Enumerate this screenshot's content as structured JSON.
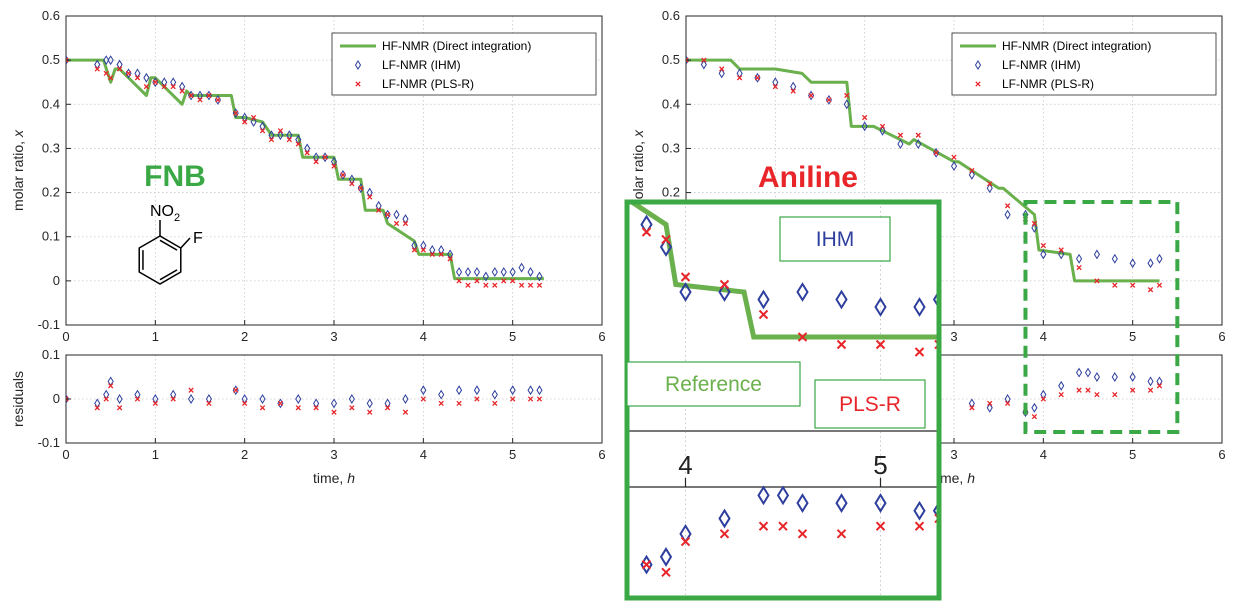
{
  "chart_data": [
    {
      "type": "scatter",
      "panel": "FNB",
      "xlabel": "time, h",
      "ylabel_top": "molar ratio, x",
      "ylabel_bottom": "residuals",
      "xlim": [
        0,
        6
      ],
      "ylim_top": [
        -0.1,
        0.6
      ],
      "ylim_bottom": [
        -0.1,
        0.1
      ],
      "xticks": [
        "0",
        "1",
        "2",
        "3",
        "4",
        "5",
        "6"
      ],
      "yticks_top": [
        "-0.1",
        "0",
        "0.1",
        "0.2",
        "0.3",
        "0.4",
        "0.5",
        "0.6"
      ],
      "yticks_bottom": [
        "-0.1",
        "0",
        "0.1"
      ],
      "grid": true,
      "legend_position": "top-right",
      "legend": [
        "HF-NMR (Direct integration)",
        "LF-NMR (IHM)",
        "LF-NMR (PLS-R)"
      ],
      "annotation": "FNB",
      "structure_label": {
        "main": "NO",
        "sub": "2",
        "sub2": "F"
      },
      "series": [
        {
          "name": "HF-NMR (Direct integration)",
          "style": "line",
          "color": "#6ab04c",
          "x": [
            0.0,
            0.42,
            0.5,
            0.55,
            0.6,
            0.9,
            0.95,
            1.0,
            1.3,
            1.35,
            1.4,
            1.85,
            1.9,
            2.0,
            2.2,
            2.3,
            2.6,
            2.65,
            3.0,
            3.05,
            3.3,
            3.35,
            3.55,
            3.6,
            3.9,
            3.95,
            4.3,
            4.35,
            5.35
          ],
          "y": [
            0.5,
            0.5,
            0.45,
            0.48,
            0.48,
            0.42,
            0.46,
            0.46,
            0.4,
            0.43,
            0.42,
            0.42,
            0.37,
            0.37,
            0.36,
            0.33,
            0.33,
            0.28,
            0.28,
            0.23,
            0.23,
            0.16,
            0.16,
            0.13,
            0.09,
            0.06,
            0.06,
            0.005,
            0.005
          ]
        },
        {
          "name": "LF-NMR (IHM)",
          "style": "markers",
          "marker": "diamond",
          "color": "#2e3f9e",
          "x": [
            0.0,
            0.35,
            0.45,
            0.5,
            0.6,
            0.7,
            0.8,
            0.9,
            1.0,
            1.1,
            1.2,
            1.3,
            1.4,
            1.5,
            1.6,
            1.7,
            1.9,
            2.0,
            2.1,
            2.2,
            2.3,
            2.4,
            2.5,
            2.6,
            2.7,
            2.8,
            2.9,
            3.0,
            3.1,
            3.2,
            3.3,
            3.4,
            3.5,
            3.6,
            3.7,
            3.8,
            3.9,
            4.0,
            4.1,
            4.2,
            4.3,
            4.4,
            4.5,
            4.6,
            4.7,
            4.8,
            4.9,
            5.0,
            5.1,
            5.2,
            5.3
          ],
          "y": [
            0.5,
            0.49,
            0.5,
            0.5,
            0.49,
            0.47,
            0.47,
            0.46,
            0.45,
            0.45,
            0.45,
            0.44,
            0.42,
            0.42,
            0.42,
            0.41,
            0.38,
            0.37,
            0.36,
            0.35,
            0.33,
            0.33,
            0.33,
            0.32,
            0.3,
            0.28,
            0.28,
            0.27,
            0.24,
            0.23,
            0.21,
            0.2,
            0.17,
            0.15,
            0.15,
            0.14,
            0.08,
            0.08,
            0.07,
            0.07,
            0.06,
            0.02,
            0.02,
            0.02,
            0.01,
            0.02,
            0.02,
            0.02,
            0.03,
            0.02,
            0.01
          ]
        },
        {
          "name": "LF-NMR (PLS-R)",
          "style": "markers",
          "marker": "x",
          "color": "#e8262a",
          "x": [
            0.0,
            0.35,
            0.45,
            0.5,
            0.6,
            0.7,
            0.8,
            0.9,
            1.0,
            1.1,
            1.2,
            1.3,
            1.4,
            1.5,
            1.6,
            1.7,
            1.9,
            2.0,
            2.1,
            2.2,
            2.3,
            2.4,
            2.5,
            2.6,
            2.7,
            2.8,
            2.9,
            3.0,
            3.1,
            3.2,
            3.3,
            3.4,
            3.5,
            3.6,
            3.7,
            3.8,
            3.9,
            4.0,
            4.1,
            4.2,
            4.3,
            4.4,
            4.5,
            4.6,
            4.7,
            4.8,
            4.9,
            5.0,
            5.1,
            5.2,
            5.3
          ],
          "y": [
            0.5,
            0.48,
            0.47,
            0.46,
            0.48,
            0.47,
            0.46,
            0.44,
            0.45,
            0.44,
            0.44,
            0.43,
            0.42,
            0.41,
            0.42,
            0.41,
            0.38,
            0.36,
            0.37,
            0.34,
            0.32,
            0.34,
            0.32,
            0.31,
            0.29,
            0.27,
            0.28,
            0.26,
            0.24,
            0.22,
            0.21,
            0.19,
            0.16,
            0.15,
            0.13,
            0.13,
            0.07,
            0.07,
            0.06,
            0.06,
            0.05,
            0.0,
            -0.01,
            0.0,
            -0.01,
            -0.01,
            0.0,
            0.0,
            -0.01,
            -0.01,
            -0.01
          ]
        },
        {
          "name": "residuals-IHM",
          "style": "markers",
          "marker": "diamond",
          "color": "#2e3f9e",
          "x": [
            0.0,
            0.35,
            0.45,
            0.5,
            0.6,
            0.8,
            1.0,
            1.2,
            1.4,
            1.6,
            1.9,
            2.0,
            2.2,
            2.4,
            2.6,
            2.8,
            3.0,
            3.2,
            3.4,
            3.6,
            3.8,
            4.0,
            4.2,
            4.4,
            4.6,
            4.8,
            5.0,
            5.2,
            5.3
          ],
          "y": [
            0.0,
            -0.01,
            0.01,
            0.04,
            0.0,
            0.01,
            0.0,
            0.01,
            0.0,
            0.0,
            0.02,
            0.0,
            0.0,
            -0.01,
            0.0,
            -0.01,
            -0.01,
            0.0,
            -0.01,
            -0.01,
            0.0,
            0.02,
            0.01,
            0.02,
            0.02,
            0.01,
            0.02,
            0.02,
            0.02
          ]
        },
        {
          "name": "residuals-PLS-R",
          "style": "markers",
          "marker": "x",
          "color": "#e8262a",
          "x": [
            0.0,
            0.35,
            0.45,
            0.5,
            0.6,
            0.8,
            1.0,
            1.2,
            1.4,
            1.6,
            1.9,
            2.0,
            2.2,
            2.4,
            2.6,
            2.8,
            3.0,
            3.2,
            3.4,
            3.6,
            3.8,
            4.0,
            4.2,
            4.4,
            4.6,
            4.8,
            5.0,
            5.2,
            5.3
          ],
          "y": [
            0.0,
            -0.02,
            0.0,
            0.03,
            -0.02,
            0.0,
            -0.01,
            0.0,
            0.02,
            -0.01,
            0.02,
            -0.01,
            -0.02,
            -0.01,
            -0.02,
            -0.02,
            -0.03,
            -0.02,
            -0.03,
            -0.02,
            -0.03,
            0.0,
            -0.01,
            -0.01,
            0.0,
            -0.01,
            0.0,
            0.0,
            0.0
          ]
        }
      ]
    },
    {
      "type": "scatter",
      "panel": "Aniline",
      "xlabel": "time, h",
      "ylabel_top": "molar ratio, x",
      "xlim": [
        0,
        6
      ],
      "ylim_top": [
        -0.1,
        0.6
      ],
      "ylim_bottom": [
        -0.1,
        0.1
      ],
      "xticks": [
        "0",
        "1",
        "2",
        "3",
        "4",
        "5",
        "6"
      ],
      "yticks_top": [
        "-0.1",
        "0",
        "0.1",
        "0.2",
        "0.3",
        "0.4",
        "0.5",
        "0.6"
      ],
      "grid": true,
      "legend_position": "top-right",
      "legend": [
        "HF-NMR (Direct integration)",
        "LF-NMR (IHM)",
        "LF-NMR (PLS-R)"
      ],
      "annotation": "Aniline",
      "inset": {
        "xlim": [
          3.7,
          5.3
        ],
        "xticks": [
          "4",
          "5"
        ],
        "labels": {
          "ihm": "IHM",
          "reference": "Reference",
          "plsr": "PLS-R"
        }
      },
      "series": [
        {
          "name": "HF-NMR (Direct integration)",
          "style": "line",
          "color": "#6ab04c",
          "x": [
            0.0,
            0.5,
            0.6,
            1.0,
            1.3,
            1.4,
            1.8,
            1.85,
            2.1,
            2.5,
            2.55,
            3.0,
            3.05,
            3.5,
            3.55,
            3.9,
            3.95,
            4.3,
            4.35,
            5.3
          ],
          "y": [
            0.5,
            0.5,
            0.48,
            0.48,
            0.47,
            0.45,
            0.45,
            0.35,
            0.35,
            0.31,
            0.32,
            0.27,
            0.27,
            0.21,
            0.21,
            0.15,
            0.07,
            0.06,
            0.0,
            0.0
          ]
        },
        {
          "name": "LF-NMR (IHM)",
          "style": "markers",
          "marker": "diamond",
          "color": "#2e3f9e",
          "x": [
            0.0,
            0.2,
            0.4,
            0.6,
            0.8,
            1.0,
            1.2,
            1.4,
            1.6,
            1.8,
            2.0,
            2.2,
            2.4,
            2.6,
            2.8,
            3.0,
            3.2,
            3.4,
            3.6,
            3.8,
            3.9,
            4.0,
            4.2,
            4.4,
            4.6,
            4.8,
            5.0,
            5.2,
            5.3
          ],
          "y": [
            0.5,
            0.49,
            0.47,
            0.47,
            0.46,
            0.45,
            0.44,
            0.42,
            0.41,
            0.4,
            0.35,
            0.34,
            0.31,
            0.31,
            0.29,
            0.26,
            0.24,
            0.21,
            0.15,
            0.15,
            0.12,
            0.06,
            0.06,
            0.05,
            0.06,
            0.05,
            0.04,
            0.04,
            0.05
          ]
        },
        {
          "name": "LF-NMR (PLS-R)",
          "style": "markers",
          "marker": "x",
          "color": "#e8262a",
          "x": [
            0.0,
            0.2,
            0.4,
            0.6,
            0.8,
            1.0,
            1.2,
            1.4,
            1.6,
            1.8,
            2.0,
            2.2,
            2.4,
            2.6,
            2.8,
            3.0,
            3.2,
            3.4,
            3.6,
            3.8,
            3.9,
            4.0,
            4.2,
            4.4,
            4.6,
            4.8,
            5.0,
            5.2,
            5.3
          ],
          "y": [
            0.5,
            0.5,
            0.48,
            0.46,
            0.46,
            0.44,
            0.43,
            0.42,
            0.41,
            0.42,
            0.37,
            0.35,
            0.33,
            0.33,
            0.29,
            0.28,
            0.25,
            0.22,
            0.17,
            0.14,
            0.13,
            0.08,
            0.07,
            0.03,
            0.0,
            -0.01,
            -0.01,
            -0.02,
            -0.01
          ]
        },
        {
          "name": "residuals-IHM",
          "style": "markers",
          "marker": "diamond",
          "color": "#2e3f9e",
          "x": [
            0.0,
            0.4,
            0.8,
            1.2,
            1.6,
            2.0,
            2.4,
            2.8,
            3.2,
            3.4,
            3.6,
            3.8,
            3.9,
            4.0,
            4.2,
            4.4,
            4.5,
            4.6,
            4.8,
            5.0,
            5.2,
            5.3
          ],
          "y": [
            0.0,
            -0.01,
            0.0,
            0.0,
            -0.01,
            -0.01,
            -0.02,
            -0.01,
            -0.01,
            -0.02,
            0.0,
            -0.03,
            -0.02,
            0.01,
            0.03,
            0.06,
            0.06,
            0.05,
            0.05,
            0.05,
            0.04,
            0.04
          ]
        },
        {
          "name": "residuals-PLS-R",
          "style": "markers",
          "marker": "x",
          "color": "#e8262a",
          "x": [
            0.0,
            0.4,
            0.8,
            1.2,
            1.6,
            2.0,
            2.4,
            2.8,
            3.2,
            3.4,
            3.6,
            3.8,
            3.9,
            4.0,
            4.2,
            4.4,
            4.5,
            4.6,
            4.8,
            5.0,
            5.2,
            5.3
          ],
          "y": [
            0.0,
            0.0,
            -0.01,
            -0.01,
            0.0,
            -0.02,
            -0.02,
            -0.03,
            -0.02,
            -0.01,
            -0.01,
            -0.03,
            -0.04,
            0.0,
            0.01,
            0.02,
            0.02,
            0.01,
            0.01,
            0.02,
            0.02,
            0.03
          ]
        }
      ]
    }
  ]
}
